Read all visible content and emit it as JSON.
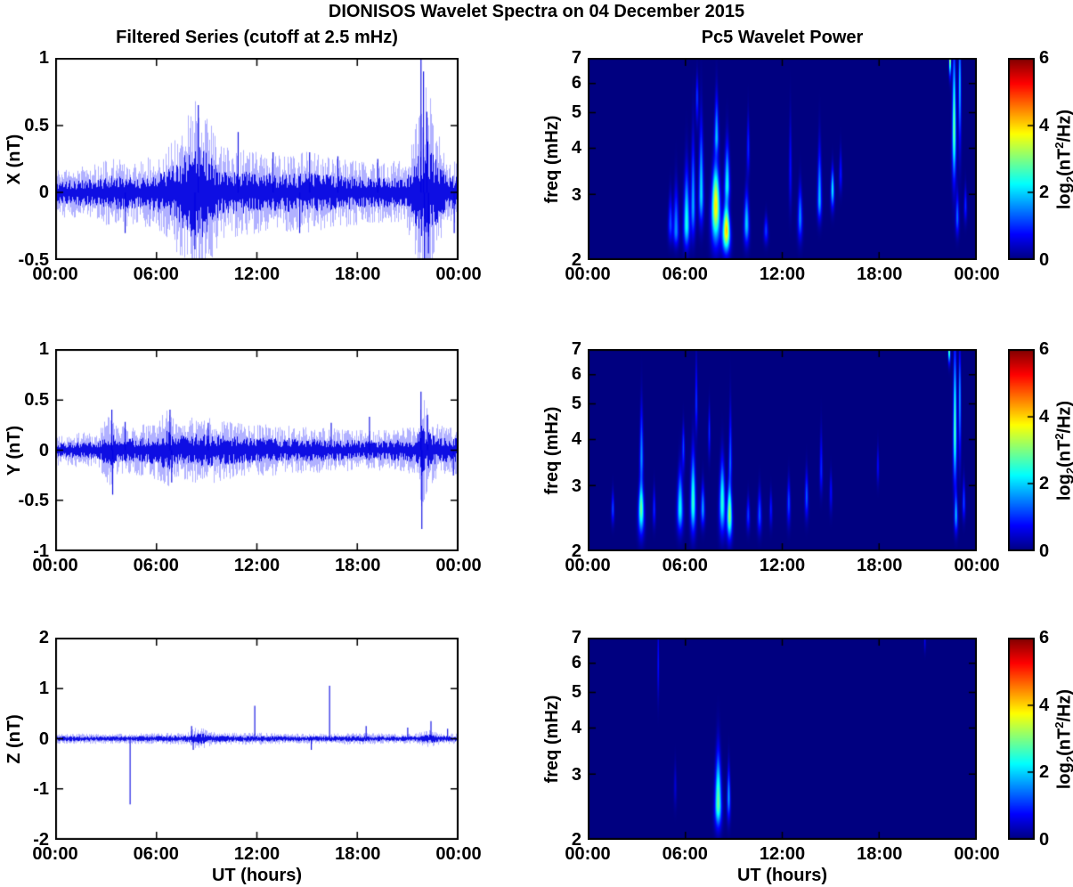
{
  "title": "DIONISOS Wavelet Spectra on 04 December 2015",
  "left_title": "Filtered Series (cutoff at 2.5 mHz)",
  "right_title": "Pc5 Wavelet Power",
  "colors": {
    "background": "#FFFFFF",
    "axis": "#000000",
    "line_blue": "#0000E1",
    "line_halo": "#6464FF",
    "heatmap_low": "#000080",
    "heatmap_high": "#800000"
  },
  "colorbar": {
    "range": [
      0,
      6
    ],
    "tick_values": [
      6,
      4,
      2,
      0
    ],
    "ticks": [
      "6",
      "4",
      "2",
      "0"
    ],
    "label_parts": {
      "base": "log",
      "sub": "2",
      "mid": "(nT",
      "sup": "2",
      "end": "/Hz)"
    }
  },
  "chart_data": {
    "type": [
      "line",
      "heatmap"
    ],
    "x": {
      "label": "UT (hours)",
      "range_hours": [
        0,
        24
      ],
      "tick_hours": [
        0,
        6,
        12,
        18,
        24
      ],
      "tick_labels": [
        "00:00",
        "06:00",
        "12:00",
        "18:00",
        "00:00"
      ]
    },
    "series": [
      {
        "name": "X",
        "ylabel": "X (nT)",
        "ylim": [
          -0.5,
          1
        ],
        "yticks": [
          1,
          0.5,
          0,
          -0.5
        ],
        "seed": 11,
        "envelope": [
          [
            0,
            0.09
          ],
          [
            2,
            0.1
          ],
          [
            3.5,
            0.13
          ],
          [
            5,
            0.12
          ],
          [
            6.5,
            0.16
          ],
          [
            7.5,
            0.26
          ],
          [
            8.3,
            0.38
          ],
          [
            9,
            0.3
          ],
          [
            9.8,
            0.17
          ],
          [
            11,
            0.16
          ],
          [
            13,
            0.14
          ],
          [
            15,
            0.15
          ],
          [
            17,
            0.13
          ],
          [
            19,
            0.11
          ],
          [
            21,
            0.12
          ],
          [
            21.8,
            0.3
          ],
          [
            22.2,
            0.42
          ],
          [
            22.8,
            0.25
          ],
          [
            23.4,
            0.13
          ],
          [
            24,
            0.12
          ]
        ],
        "spikes": [
          [
            4.1,
            -0.3
          ],
          [
            8.3,
            -0.42
          ],
          [
            8.5,
            0.65
          ],
          [
            10.9,
            0.45
          ],
          [
            13,
            0.3
          ],
          [
            14.6,
            -0.3
          ],
          [
            15.2,
            0.3
          ],
          [
            16.9,
            0.27
          ],
          [
            19.3,
            0.25
          ],
          [
            21.9,
            1.0
          ],
          [
            22.05,
            0.9
          ],
          [
            22.1,
            -0.5
          ],
          [
            22.25,
            0.6
          ],
          [
            22.35,
            -0.45
          ],
          [
            23.9,
            -0.3
          ]
        ]
      },
      {
        "name": "Y",
        "ylabel": "Y (nT)",
        "ylim": [
          -1,
          1
        ],
        "yticks": [
          1,
          0.5,
          0,
          -0.5,
          -1
        ],
        "seed": 22,
        "envelope": [
          [
            0,
            0.08
          ],
          [
            2.5,
            0.09
          ],
          [
            3.2,
            0.2
          ],
          [
            3.6,
            0.12
          ],
          [
            4.5,
            0.12
          ],
          [
            5.5,
            0.13
          ],
          [
            6.7,
            0.2
          ],
          [
            7.2,
            0.14
          ],
          [
            8,
            0.16
          ],
          [
            9.5,
            0.16
          ],
          [
            10.5,
            0.14
          ],
          [
            12,
            0.13
          ],
          [
            14,
            0.12
          ],
          [
            16,
            0.11
          ],
          [
            18,
            0.1
          ],
          [
            20,
            0.1
          ],
          [
            21.6,
            0.12
          ],
          [
            21.9,
            0.28
          ],
          [
            22.4,
            0.18
          ],
          [
            23,
            0.12
          ],
          [
            24,
            0.12
          ]
        ],
        "spikes": [
          [
            3.3,
            0.4
          ],
          [
            3.35,
            -0.44
          ],
          [
            4.1,
            0.28
          ],
          [
            6.8,
            0.4
          ],
          [
            6.9,
            -0.32
          ],
          [
            9.1,
            0.27
          ],
          [
            16.5,
            0.27
          ],
          [
            18.8,
            0.33
          ],
          [
            21.9,
            0.58
          ],
          [
            21.95,
            -0.78
          ],
          [
            22.3,
            0.35
          ],
          [
            23.85,
            -0.25
          ]
        ]
      },
      {
        "name": "Z",
        "ylabel": "Z (nT)",
        "ylim": [
          -2,
          2
        ],
        "yticks": [
          2,
          1,
          0,
          -1,
          -2
        ],
        "seed": 33,
        "envelope": [
          [
            0,
            0.05
          ],
          [
            4,
            0.05
          ],
          [
            7.8,
            0.06
          ],
          [
            8.3,
            0.11
          ],
          [
            8.8,
            0.1
          ],
          [
            9.3,
            0.07
          ],
          [
            10,
            0.06
          ],
          [
            12,
            0.06
          ],
          [
            14,
            0.05
          ],
          [
            16,
            0.05
          ],
          [
            18,
            0.06
          ],
          [
            20,
            0.05
          ],
          [
            21.5,
            0.05
          ],
          [
            22.4,
            0.09
          ],
          [
            22.9,
            0.06
          ],
          [
            24,
            0.05
          ]
        ],
        "spikes": [
          [
            4.4,
            -1.3
          ],
          [
            8.1,
            0.25
          ],
          [
            8.2,
            -0.22
          ],
          [
            11.9,
            0.65
          ],
          [
            15.3,
            -0.22
          ],
          [
            16.4,
            1.05
          ],
          [
            18.6,
            0.25
          ],
          [
            21.1,
            0.22
          ],
          [
            22.5,
            0.35
          ],
          [
            23.5,
            0.2
          ]
        ]
      }
    ],
    "spectrograms": [
      {
        "name": "X",
        "ylabel": "freq (mHz)",
        "ylim_mhz": [
          2,
          7
        ],
        "yscale": "log",
        "yticks": [
          7,
          6,
          5,
          4,
          3,
          2
        ],
        "clim": [
          0,
          6
        ],
        "blobs": [
          [
            5.1,
            2.2,
            2.5,
            3.2,
            0.15,
            1.2
          ],
          [
            5.45,
            2.15,
            2.4,
            3.5,
            0.18,
            1.6
          ],
          [
            6.1,
            2.1,
            2.5,
            4.0,
            0.2,
            2.4
          ],
          [
            6.5,
            2.2,
            2.8,
            5.0,
            0.15,
            1.8
          ],
          [
            6.75,
            4.5,
            5.5,
            6.6,
            0.1,
            1.1
          ],
          [
            7.0,
            2.4,
            3.0,
            5.6,
            0.16,
            2.1
          ],
          [
            7.9,
            2.1,
            2.8,
            4.0,
            0.3,
            3.9
          ],
          [
            7.95,
            3.8,
            4.3,
            6.2,
            0.14,
            1.8
          ],
          [
            8.55,
            2.05,
            2.4,
            3.0,
            0.26,
            4.1
          ],
          [
            8.6,
            2.8,
            3.2,
            4.6,
            0.18,
            2.2
          ],
          [
            9.8,
            2.15,
            2.5,
            3.3,
            0.18,
            2.0
          ],
          [
            9.9,
            3.3,
            4.0,
            5.3,
            0.1,
            1.0
          ],
          [
            11.0,
            2.2,
            2.4,
            2.7,
            0.15,
            1.1
          ],
          [
            12.5,
            2.6,
            3.5,
            5.6,
            0.1,
            0.8
          ],
          [
            13.1,
            2.2,
            2.6,
            3.4,
            0.16,
            1.6
          ],
          [
            14.3,
            2.5,
            2.9,
            4.6,
            0.14,
            1.9
          ],
          [
            15.1,
            2.7,
            3.1,
            3.7,
            0.12,
            2.2
          ],
          [
            15.6,
            3.0,
            3.4,
            4.2,
            0.1,
            0.9
          ],
          [
            22.35,
            6.2,
            7.0,
            8.0,
            0.07,
            3.8
          ],
          [
            22.6,
            3.0,
            4.5,
            9.0,
            0.13,
            3.0
          ],
          [
            22.95,
            3.6,
            6.0,
            9.0,
            0.1,
            2.0
          ],
          [
            22.8,
            2.3,
            2.6,
            3.2,
            0.12,
            1.4
          ],
          [
            23.3,
            2.5,
            2.8,
            3.3,
            0.1,
            1.0
          ]
        ]
      },
      {
        "name": "Y",
        "ylabel": "freq (mHz)",
        "ylim_mhz": [
          2,
          7
        ],
        "yscale": "log",
        "yticks": [
          7,
          6,
          5,
          4,
          3,
          2
        ],
        "clim": [
          0,
          6
        ],
        "blobs": [
          [
            1.55,
            2.35,
            2.6,
            3.0,
            0.1,
            1.2
          ],
          [
            3.3,
            2.15,
            2.6,
            3.3,
            0.2,
            2.9
          ],
          [
            3.32,
            3.0,
            3.6,
            5.6,
            0.12,
            1.6
          ],
          [
            4.1,
            2.3,
            2.6,
            3.1,
            0.1,
            1.0
          ],
          [
            5.7,
            2.2,
            2.6,
            3.6,
            0.2,
            2.3
          ],
          [
            5.9,
            3.2,
            3.8,
            4.6,
            0.1,
            1.2
          ],
          [
            6.5,
            2.15,
            2.7,
            4.2,
            0.18,
            2.6
          ],
          [
            6.7,
            4.0,
            5.0,
            7.5,
            0.08,
            1.1
          ],
          [
            7.1,
            2.3,
            2.6,
            3.2,
            0.14,
            1.7
          ],
          [
            7.5,
            3.5,
            4.2,
            5.2,
            0.08,
            1.0
          ],
          [
            8.3,
            2.15,
            2.7,
            3.9,
            0.2,
            2.5
          ],
          [
            8.75,
            2.1,
            2.5,
            3.3,
            0.18,
            3.2
          ],
          [
            8.8,
            3.0,
            3.5,
            5.6,
            0.1,
            1.3
          ],
          [
            9.9,
            2.25,
            2.5,
            2.9,
            0.12,
            1.1
          ],
          [
            10.6,
            2.2,
            2.5,
            3.1,
            0.14,
            1.3
          ],
          [
            11.3,
            2.3,
            2.6,
            3.0,
            0.1,
            0.9
          ],
          [
            12.4,
            2.3,
            2.7,
            3.3,
            0.12,
            1.2
          ],
          [
            13.5,
            2.4,
            2.8,
            3.5,
            0.12,
            1.3
          ],
          [
            14.4,
            2.8,
            3.3,
            4.6,
            0.1,
            1.0
          ],
          [
            15.0,
            2.5,
            2.9,
            3.4,
            0.1,
            0.8
          ],
          [
            17.9,
            3.0,
            3.4,
            4.0,
            0.08,
            0.8
          ],
          [
            22.3,
            6.4,
            7.0,
            7.8,
            0.07,
            3.4
          ],
          [
            22.65,
            2.8,
            4.2,
            9.0,
            0.12,
            2.8
          ],
          [
            22.95,
            3.2,
            5.2,
            8.0,
            0.09,
            1.8
          ],
          [
            22.72,
            2.2,
            2.5,
            3.0,
            0.12,
            1.8
          ],
          [
            23.2,
            2.4,
            2.7,
            3.3,
            0.1,
            1.2
          ]
        ]
      },
      {
        "name": "Z",
        "ylabel": "freq (mHz)",
        "ylim_mhz": [
          2,
          7
        ],
        "yscale": "log",
        "yticks": [
          7,
          6,
          5,
          4,
          3,
          2
        ],
        "clim": [
          0,
          6
        ],
        "blobs": [
          [
            4.35,
            4.6,
            6.0,
            8.5,
            0.06,
            0.9
          ],
          [
            5.4,
            2.4,
            2.8,
            3.4,
            0.1,
            0.5
          ],
          [
            8.05,
            2.1,
            2.5,
            3.9,
            0.22,
            2.9
          ],
          [
            8.7,
            2.2,
            2.6,
            3.4,
            0.12,
            1.7
          ],
          [
            20.8,
            6.4,
            6.9,
            7.6,
            0.06,
            0.7
          ]
        ]
      }
    ]
  }
}
